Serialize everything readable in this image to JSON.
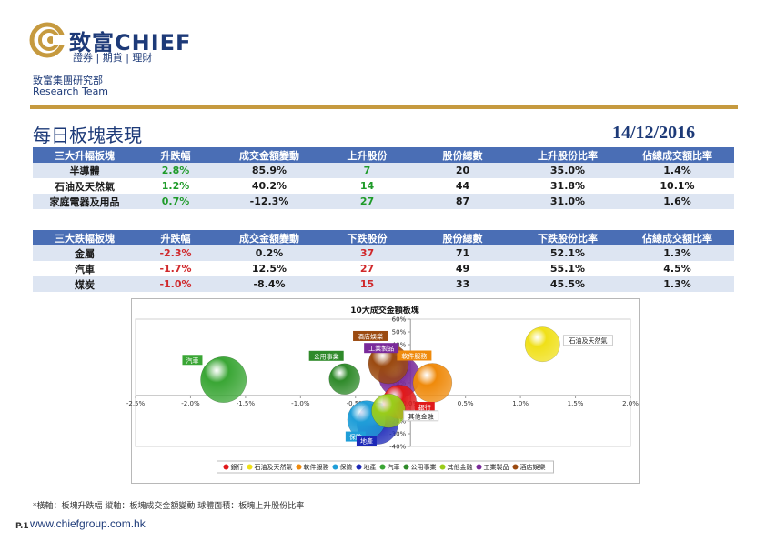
{
  "header": {
    "brand_name": "致富CHIEF",
    "brand_sub": "證券 | 期貨 | 理財",
    "dept_cn": "致富集團研究部",
    "dept_en": "Research Team",
    "title": "每日板塊表現",
    "date": "14/12/2016"
  },
  "colors": {
    "brand": "#1d3a78",
    "header_bar": "#4a6eb5",
    "rule": "#c69a3f",
    "up": "#1f9b2a",
    "down": "#d0282b"
  },
  "top_gainers": {
    "headers": [
      "三大升幅板塊",
      "升跌幅",
      "成交金額變動",
      "上升股份",
      "股份總數",
      "上升股份比率",
      "佔總成交額比率"
    ],
    "rows": [
      [
        "半導體",
        "2.8%",
        "85.9%",
        "7",
        "20",
        "35.0%",
        "1.4%"
      ],
      [
        "石油及天然氣",
        "1.2%",
        "40.2%",
        "14",
        "44",
        "31.8%",
        "10.1%"
      ],
      [
        "家庭電器及用品",
        "0.7%",
        "-12.3%",
        "27",
        "87",
        "31.0%",
        "1.6%"
      ]
    ]
  },
  "top_losers": {
    "headers": [
      "三大跌幅板塊",
      "升跌幅",
      "成交金額變動",
      "下跌股份",
      "股份總數",
      "下跌股份比率",
      "佔總成交額比率"
    ],
    "rows": [
      [
        "金屬",
        "-2.3%",
        "0.2%",
        "37",
        "71",
        "52.1%",
        "1.3%"
      ],
      [
        "汽車",
        "-1.7%",
        "12.5%",
        "27",
        "49",
        "55.1%",
        "4.5%"
      ],
      [
        "煤炭",
        "-1.0%",
        "-8.4%",
        "15",
        "33",
        "45.5%",
        "1.3%"
      ]
    ]
  },
  "chart_data": {
    "type": "scatter",
    "subtype": "bubble",
    "title": "10大成交金額板塊",
    "xlim": [
      -2.5,
      2.0
    ],
    "ylim": [
      -40,
      60
    ],
    "x_ticks": [
      "-2.5%",
      "-2.0%",
      "-1.5%",
      "-1.0%",
      "-0.5%",
      "0.0%",
      "0.5%",
      "1.0%",
      "1.5%",
      "2.0%"
    ],
    "y_ticks": [
      "-40%",
      "-30%",
      "-20%",
      "-10%",
      "0%",
      "10%",
      "20%",
      "30%",
      "40%",
      "50%",
      "60%"
    ],
    "legend_position": "bottom",
    "series": [
      {
        "name": "銀行",
        "x": -0.1,
        "y": -5,
        "size": 0.3,
        "color": "#e0191b"
      },
      {
        "name": "石油及天然氣",
        "x": 1.2,
        "y": 40.2,
        "size": 0.318,
        "color": "#f0e018"
      },
      {
        "name": "軟件服務",
        "x": 0.2,
        "y": 10,
        "size": 0.4,
        "color": "#ef8a0b"
      },
      {
        "name": "保險",
        "x": -0.4,
        "y": -19,
        "size": 0.38,
        "color": "#1f9ed8"
      },
      {
        "name": "地產",
        "x": -0.3,
        "y": -22,
        "size": 0.45,
        "color": "#1c28b8"
      },
      {
        "name": "汽車",
        "x": -1.7,
        "y": 12.5,
        "size": 0.551,
        "color": "#3aa635"
      },
      {
        "name": "公用事業",
        "x": -0.6,
        "y": 13,
        "size": 0.25,
        "color": "#2f8a2a"
      },
      {
        "name": "其他金融",
        "x": -0.2,
        "y": -12,
        "size": 0.3,
        "color": "#9acd1a"
      },
      {
        "name": "工業製品",
        "x": -0.1,
        "y": 15,
        "size": 0.45,
        "color": "#7a2a9a"
      },
      {
        "name": "酒店娛樂",
        "x": -0.2,
        "y": 25,
        "size": 0.42,
        "color": "#9b4a10"
      }
    ]
  },
  "footer": {
    "footnote": "*橫軸：板塊升跌幅      縱軸：板塊成交金額變動      球體面積：板塊上升股份比率",
    "page": "P.1",
    "website": "www.chiefgroup.com.hk"
  }
}
